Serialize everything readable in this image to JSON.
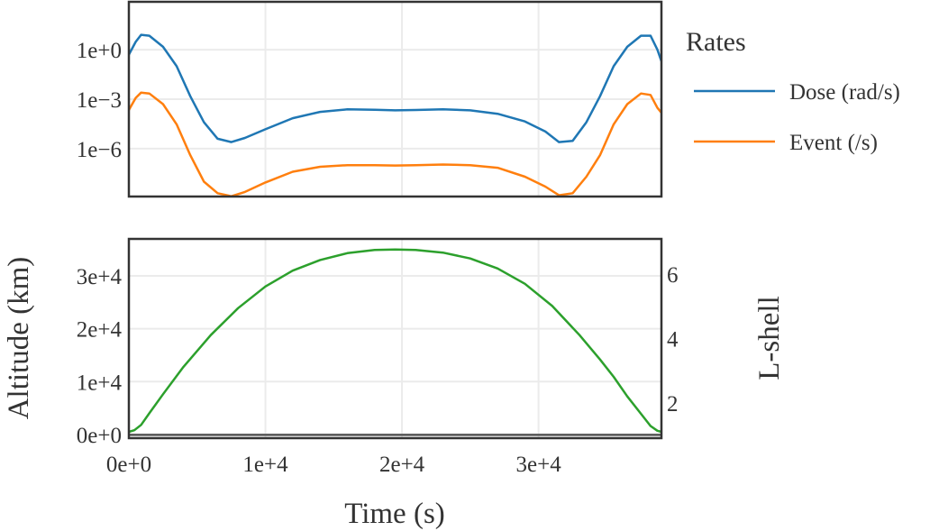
{
  "chart_data": [
    {
      "type": "line",
      "panel": "top",
      "yscale": "log",
      "y_tick_labels": [
        "1e−6",
        "1e−3",
        "1e+0"
      ],
      "y_tick_values": [
        1e-06,
        0.001,
        1
      ],
      "ylim_log10": [
        -8.9,
        2.9
      ],
      "xlim": [
        0,
        39000
      ],
      "grid": true,
      "legend": {
        "title": "Rates",
        "placement": "right",
        "entries": [
          "Dose (rad/s)",
          "Event (/s)"
        ]
      },
      "series": [
        {
          "name": "Dose (rad/s)",
          "color": "#1f77b4",
          "x": [
            0,
            500,
            900,
            1500,
            2500,
            3500,
            4500,
            5500,
            6500,
            7500,
            8500,
            10000,
            12000,
            14000,
            16000,
            18000,
            19500,
            21000,
            23000,
            25000,
            27000,
            29000,
            30500,
            31500,
            32500,
            33500,
            34500,
            35500,
            36500,
            37500,
            38200,
            38700,
            39000
          ],
          "y": [
            0.5,
            3,
            8,
            7,
            1.5,
            0.1,
            0.0015,
            4e-05,
            4e-06,
            2.5e-06,
            4.5e-06,
            1.5e-05,
            7e-05,
            0.00017,
            0.00024,
            0.00023,
            0.00021,
            0.00022,
            0.00024,
            0.00021,
            0.00013,
            4.5e-05,
            1.1e-05,
            2.5e-06,
            3e-06,
            4e-05,
            0.0015,
            0.1,
            1.5,
            7,
            7,
            1,
            0.2
          ]
        },
        {
          "name": "Event (/s)",
          "color": "#ff7f0e",
          "x": [
            0,
            500,
            900,
            1500,
            2500,
            3500,
            4500,
            5500,
            6500,
            7500,
            8500,
            10000,
            12000,
            14000,
            16000,
            18000,
            19500,
            21000,
            23000,
            25000,
            27000,
            29000,
            30500,
            31500,
            32500,
            33500,
            34500,
            35500,
            36500,
            37500,
            38200,
            38700,
            39000
          ],
          "y": [
            0.00022,
            0.0012,
            0.0025,
            0.0022,
            0.0005,
            3e-05,
            4e-07,
            1e-08,
            2e-09,
            1.3e-09,
            2.4e-09,
            9e-09,
            4e-08,
            8e-08,
            1e-07,
            1e-07,
            9.5e-08,
            1e-07,
            1.1e-07,
            1e-07,
            7e-08,
            2e-08,
            5e-09,
            1.5e-09,
            2e-09,
            2e-08,
            4e-07,
            3e-05,
            0.0005,
            0.0022,
            0.0018,
            0.0003,
            0.00015
          ]
        }
      ]
    },
    {
      "type": "line",
      "panel": "bottom",
      "xlabel": "Time (s)",
      "ylabel": "Altitude (km)",
      "y2label": "L-shell",
      "x_tick_labels": [
        "0e+0",
        "1e+4",
        "2e+4",
        "3e+4"
      ],
      "x_tick_values": [
        0,
        10000,
        20000,
        30000
      ],
      "y_tick_labels": [
        "0e+0",
        "1e+4",
        "2e+4",
        "3e+4"
      ],
      "y_tick_values": [
        0,
        10000,
        20000,
        30000
      ],
      "y2_tick_labels": [
        "2",
        "4",
        "6"
      ],
      "y2_tick_values": [
        2,
        4,
        6
      ],
      "xlim": [
        0,
        39000
      ],
      "ylim": [
        -700,
        37000
      ],
      "y2lim": [
        0.9,
        7.1
      ],
      "grid": true,
      "series": [
        {
          "name": "Altitude",
          "color": "#2ca02c",
          "x": [
            0,
            400,
            900,
            1500,
            2500,
            4000,
            6000,
            8000,
            10000,
            12000,
            14000,
            16000,
            18000,
            19500,
            21000,
            23000,
            25000,
            27000,
            29000,
            31000,
            33000,
            34500,
            35500,
            36500,
            37500,
            38200,
            38700,
            39000
          ],
          "y": [
            500,
            800,
            1800,
            4000,
            7600,
            12800,
            18800,
            23900,
            28000,
            31000,
            33000,
            34300,
            34900,
            35000,
            34900,
            34400,
            33300,
            31400,
            28500,
            24300,
            18800,
            14200,
            10900,
            7200,
            3900,
            1600,
            700,
            500
          ]
        },
        {
          "name": "L-shell",
          "color": "#555555",
          "x": [
            0,
            39000
          ],
          "y": [
            1.0,
            1.0
          ]
        }
      ]
    }
  ]
}
